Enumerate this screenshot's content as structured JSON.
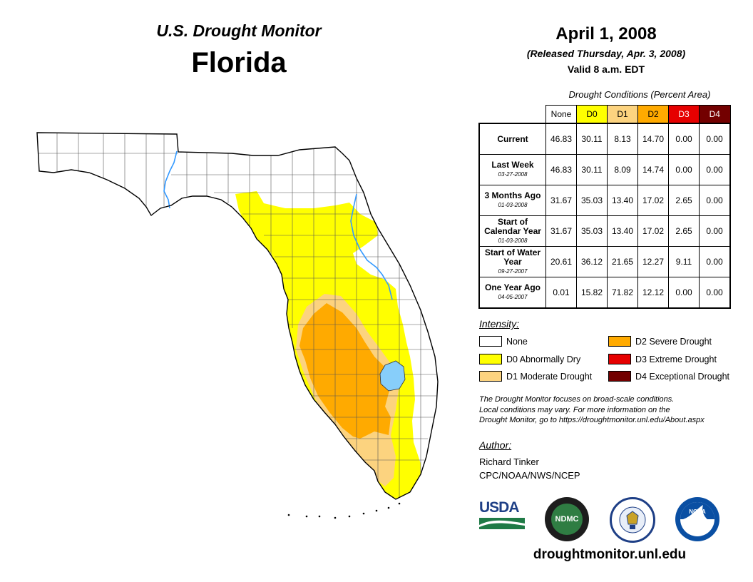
{
  "header": {
    "product": "U.S. Drought Monitor",
    "state": "Florida",
    "date": "April 1, 2008",
    "released": "(Released Thursday, Apr. 3, 2008)",
    "valid": "Valid 8 a.m. EDT"
  },
  "table": {
    "caption": "Drought Conditions (Percent Area)",
    "columns": [
      "None",
      "D0",
      "D1",
      "D2",
      "D3",
      "D4"
    ],
    "rows": [
      {
        "label": "Current",
        "date": "",
        "values": [
          "46.83",
          "30.11",
          "8.13",
          "14.70",
          "0.00",
          "0.00"
        ]
      },
      {
        "label": "Last Week",
        "date": "03-27-2008",
        "values": [
          "46.83",
          "30.11",
          "8.09",
          "14.74",
          "0.00",
          "0.00"
        ]
      },
      {
        "label": "3 Months Ago",
        "date": "01-03-2008",
        "values": [
          "31.67",
          "35.03",
          "13.40",
          "17.02",
          "2.65",
          "0.00"
        ]
      },
      {
        "label": "Start of Calendar Year",
        "date": "01-03-2008",
        "values": [
          "31.67",
          "35.03",
          "13.40",
          "17.02",
          "2.65",
          "0.00"
        ]
      },
      {
        "label": "Start of Water Year",
        "date": "09-27-2007",
        "values": [
          "20.61",
          "36.12",
          "21.65",
          "12.27",
          "9.11",
          "0.00"
        ]
      },
      {
        "label": "One Year Ago",
        "date": "04-05-2007",
        "values": [
          "0.01",
          "15.82",
          "71.82",
          "12.12",
          "0.00",
          "0.00"
        ]
      }
    ]
  },
  "legend": {
    "title": "Intensity:",
    "items": [
      {
        "label": "None",
        "color": "#ffffff"
      },
      {
        "label": "D0 Abnormally Dry",
        "color": "#ffff00"
      },
      {
        "label": "D1 Moderate Drought",
        "color": "#fcd37f"
      },
      {
        "label": "D2 Severe Drought",
        "color": "#ffaa00"
      },
      {
        "label": "D3 Extreme Drought",
        "color": "#e60000"
      },
      {
        "label": "D4 Exceptional Drought",
        "color": "#730000"
      }
    ]
  },
  "note": {
    "line1": "The Drought Monitor focuses on broad-scale conditions.",
    "line2": "Local conditions may vary. For more information on the",
    "line3": "Drought Monitor, go to https://droughtmonitor.unl.edu/About.aspx"
  },
  "author": {
    "heading": "Author:",
    "name": "Richard Tinker",
    "org": "CPC/NOAA/NWS/NCEP"
  },
  "logos": {
    "usda": "USDA",
    "ndmc": "NDMC",
    "noaa": "NOAA"
  },
  "footer": {
    "url": "droughtmonitor.unl.edu"
  }
}
